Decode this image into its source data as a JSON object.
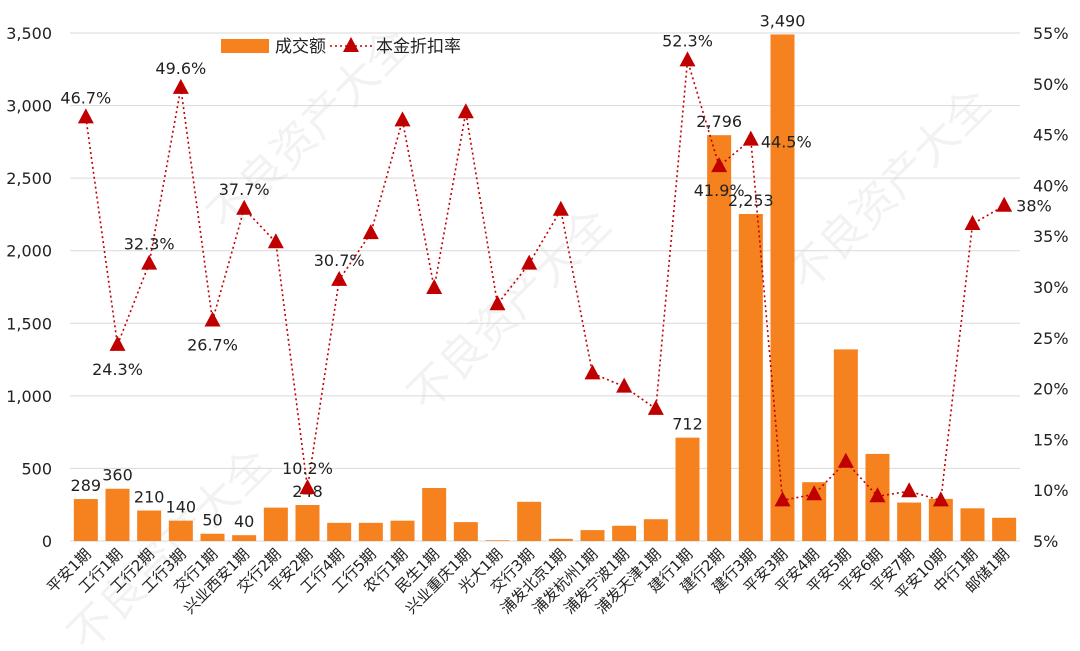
{
  "chart_data": {
    "type": "bar+line",
    "title": "",
    "xlabel": "",
    "ylabel": "",
    "categories": [
      "平安1期",
      "工行1期",
      "工行2期",
      "工行3期",
      "交行1期",
      "兴业西安1期",
      "交行2期",
      "平安2期",
      "工行4期",
      "工行5期",
      "农行1期",
      "民生1期",
      "兴业重庆1期",
      "光大1期",
      "交行3期",
      "浦发北京1期",
      "浦发杭州1期",
      "浦发宁波1期",
      "浦发天津1期",
      "建行1期",
      "建行2期",
      "建行3期",
      "平安3期",
      "平安4期",
      "平安5期",
      "平安6期",
      "平安7期",
      "平安10期",
      "中行1期",
      "邮储1期"
    ],
    "series": [
      {
        "name": "成交额",
        "type": "bar",
        "axis": "left",
        "color": "#F5811F",
        "values": [
          289,
          360,
          210,
          140,
          50,
          40,
          230,
          248,
          125,
          125,
          140,
          365,
          130,
          5,
          270,
          15,
          75,
          105,
          150,
          712,
          2796,
          2253,
          3490,
          405,
          1320,
          600,
          265,
          290,
          225,
          160
        ],
        "data_labels": {
          "0": "289",
          "1": "360",
          "2": "210",
          "3": "140",
          "4": "50",
          "5": "40",
          "7": "248",
          "19": "712",
          "20": "2,796",
          "21": "2,253",
          "22": "3,490"
        }
      },
      {
        "name": "本金折扣率",
        "type": "line",
        "axis": "right",
        "color": "#C00000",
        "line_style": "dotted",
        "marker": "triangle",
        "values": [
          46.7,
          24.3,
          32.3,
          49.6,
          26.7,
          37.7,
          34.4,
          10.2,
          30.7,
          35.3,
          46.4,
          29.9,
          47.2,
          28.3,
          32.3,
          37.6,
          21.5,
          20.2,
          18.0,
          52.3,
          41.9,
          44.5,
          9.0,
          9.6,
          12.8,
          9.4,
          9.9,
          9.0,
          36.2,
          38
        ],
        "data_labels": {
          "0": "46.7%",
          "1": "24.3%",
          "2": "32.3%",
          "3": "49.6%",
          "4": "26.7%",
          "5": "37.7%",
          "7": "10.2%",
          "8": "30.7%",
          "19": "52.3%",
          "20": "41.9%",
          "21": "44.5%",
          "29": "38%"
        }
      }
    ],
    "y_left": {
      "range": [
        0,
        3500
      ],
      "ticks": [
        "0",
        "500",
        "1,000",
        "1,500",
        "2,000",
        "2,500",
        "3,000",
        "3,500"
      ]
    },
    "y_right": {
      "range": [
        5,
        55
      ],
      "ticks": [
        "5%",
        "10%",
        "15%",
        "20%",
        "25%",
        "30%",
        "35%",
        "40%",
        "45%",
        "50%",
        "55%"
      ]
    },
    "grid": true,
    "legend": "top-left",
    "watermark": "不良资产大全"
  }
}
